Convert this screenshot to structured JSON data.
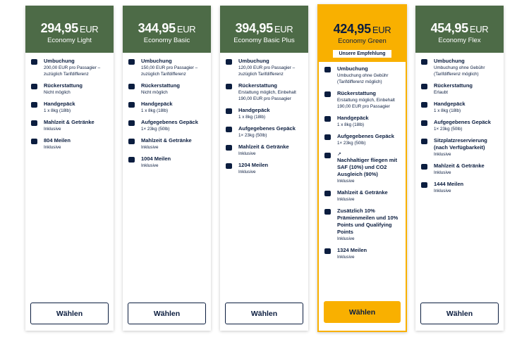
{
  "cards": [
    {
      "price": "294,95",
      "currency": "EUR",
      "name": "Economy Light",
      "highlighted": false,
      "features": [
        {
          "title": "Umbuchung",
          "desc": "200,00 EUR pro Passagier – zuzüglich Tarifdifferenz"
        },
        {
          "title": "Rückerstattung",
          "desc": "Nicht möglich"
        },
        {
          "title": "Handgepäck",
          "desc": "1 x 8kg (18lb)"
        },
        {
          "title": "Mahlzeit & Getränke",
          "desc": "Inklusive"
        },
        {
          "title": "804 Meilen",
          "desc": "Inklusive"
        }
      ],
      "button": "Wählen"
    },
    {
      "price": "344,95",
      "currency": "EUR",
      "name": "Economy Basic",
      "highlighted": false,
      "features": [
        {
          "title": "Umbuchung",
          "desc": "150,00 EUR pro Passagier – zuzüglich Tarifdifferenz"
        },
        {
          "title": "Rückerstattung",
          "desc": "Nicht möglich"
        },
        {
          "title": "Handgepäck",
          "desc": "1 x 8kg (18lb)"
        },
        {
          "title": "Aufgegebenes Gepäck",
          "desc": "1× 23kg (50lb)"
        },
        {
          "title": "Mahlzeit & Getränke",
          "desc": "Inklusive"
        },
        {
          "title": "1004 Meilen",
          "desc": "Inklusive"
        }
      ],
      "button": "Wählen"
    },
    {
      "price": "394,95",
      "currency": "EUR",
      "name": "Economy Basic Plus",
      "highlighted": false,
      "features": [
        {
          "title": "Umbuchung",
          "desc": "120,00 EUR pro Passagier – zuzüglich Tarifdifferenz"
        },
        {
          "title": "Rückerstattung",
          "desc": "Erstattung möglich, Einbehalt 190,00 EUR pro Passagier"
        },
        {
          "title": "Handgepäck",
          "desc": "1 x 8kg (18lb)"
        },
        {
          "title": "Aufgegebenes Gepäck",
          "desc": "1× 23kg (50lb)"
        },
        {
          "title": "Mahlzeit & Getränke",
          "desc": "Inklusive"
        },
        {
          "title": "1204 Meilen",
          "desc": "Inklusive"
        }
      ],
      "button": "Wählen"
    },
    {
      "price": "424,95",
      "currency": "EUR",
      "name": "Economy Green",
      "highlighted": true,
      "badge": "Unsere Empfehlung",
      "features": [
        {
          "title": "Umbuchung",
          "desc": "Umbuchung ohne Gebühr (Tarifdifferenz möglich)"
        },
        {
          "title": "Rückerstattung",
          "desc": "Erstattung möglich, Einbehalt 190,00 EUR pro Passagier"
        },
        {
          "title": "Handgepäck",
          "desc": "1 x 8kg (18lb)"
        },
        {
          "title": "Aufgegebenes Gepäck",
          "desc": "1× 23kg (50lb)"
        },
        {
          "prefix": "↗",
          "title": "Nachhaltiger fliegen mit SAF (10%) und CO2 Ausgleich (90%)",
          "desc": "Inklusive"
        },
        {
          "title": "Mahlzeit & Getränke",
          "desc": "Inklusive"
        },
        {
          "title": "Zusätzlich 10% Prämienmeilen und 10% Points und Qualifying Points",
          "desc": "Inklusive"
        },
        {
          "title": "1324 Meilen",
          "desc": "Inklusive"
        }
      ],
      "button": "Wählen"
    },
    {
      "price": "454,95",
      "currency": "EUR",
      "name": "Economy Flex",
      "highlighted": false,
      "features": [
        {
          "title": "Umbuchung",
          "desc": "Umbuchung ohne Gebühr (Tarifdifferenz möglich)"
        },
        {
          "title": "Rückerstattung",
          "desc": "Erlaubt"
        },
        {
          "title": "Handgepäck",
          "desc": "1 x 8kg (18lb)"
        },
        {
          "title": "Aufgegebenes Gepäck",
          "desc": "1× 23kg (50lb)"
        },
        {
          "title": "Sitzplatzreservierung (nach Verfügbarkeit)",
          "desc": "Inklusive"
        },
        {
          "title": "Mahlzeit & Getränke",
          "desc": "Inklusive"
        },
        {
          "title": "1444 Meilen",
          "desc": "Inklusive"
        }
      ],
      "button": "Wählen"
    }
  ]
}
